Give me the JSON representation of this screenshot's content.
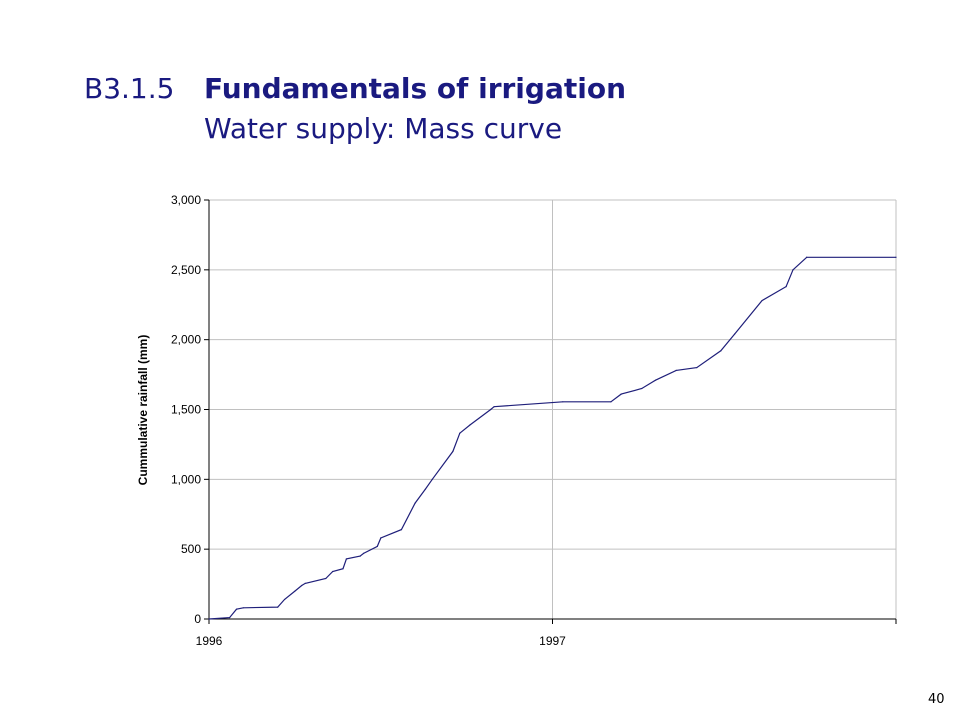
{
  "slide": {
    "code": "B3.1.5",
    "title": "Fundamentals of irrigation",
    "subtitle": "Water supply: Mass curve",
    "page_number": "40"
  },
  "colors": {
    "title": "#1a1a80",
    "series": "#1f1f7a",
    "grid": "#c0c0c0"
  },
  "chart_data": {
    "type": "line",
    "title": "",
    "xlabel": "",
    "ylabel": "Cummulative rainfall (mm)",
    "x_unit": "years",
    "x_ticks": [
      1996,
      1997
    ],
    "xlim": [
      1996.0,
      1998.0
    ],
    "ylim": [
      0,
      3000
    ],
    "y_ticks": [
      0,
      500,
      1000,
      1500,
      2000,
      2500,
      3000
    ],
    "y_tick_labels": [
      "0",
      "500",
      "1,000",
      "1,500",
      "2,000",
      "2,500",
      "3,000"
    ],
    "grid": true,
    "legend": "none",
    "series": [
      {
        "x": [
          1996.0,
          1996.06,
          1996.08,
          1996.1,
          1996.2,
          1996.22,
          1996.25,
          1996.27,
          1996.28,
          1996.34,
          1996.36,
          1996.39,
          1996.4,
          1996.44,
          1996.45,
          1996.49,
          1996.5,
          1996.56,
          1996.6,
          1996.63,
          1996.65,
          1996.71,
          1996.73,
          1996.76,
          1996.82,
          1996.83,
          1997.03,
          1997.17,
          1997.2,
          1997.26,
          1997.3,
          1997.36,
          1997.42,
          1997.49,
          1997.53,
          1997.61,
          1997.68,
          1997.7,
          1997.74,
          1998.0
        ],
        "y": [
          0,
          10,
          70,
          80,
          85,
          140,
          200,
          240,
          255,
          290,
          340,
          360,
          430,
          450,
          470,
          520,
          580,
          640,
          830,
          930,
          1000,
          1200,
          1330,
          1390,
          1500,
          1520,
          1555,
          1555,
          1610,
          1650,
          1710,
          1780,
          1800,
          1920,
          2040,
          2280,
          2380,
          2500,
          2590,
          2590
        ]
      }
    ]
  }
}
